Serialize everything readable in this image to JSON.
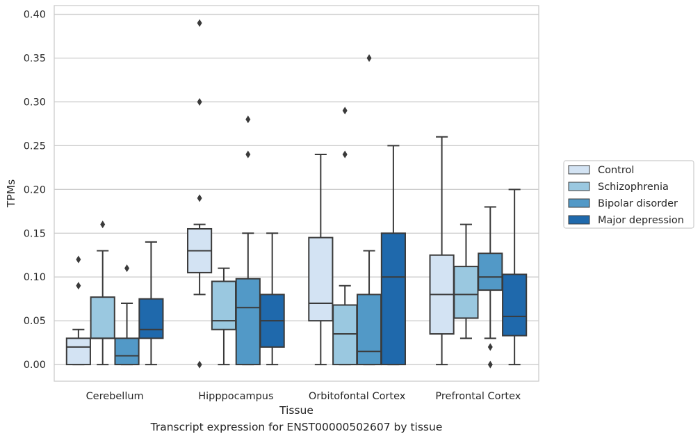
{
  "caption": "Transcript expression for ENST00000502607 by tissue",
  "chart_data": {
    "type": "box",
    "xlabel": "Tissue",
    "ylabel": "TPMs",
    "ylim": [
      -0.019,
      0.41
    ],
    "yticks": [
      0.0,
      0.05,
      0.1,
      0.15,
      0.2,
      0.25,
      0.3,
      0.35,
      0.4
    ],
    "ytick_labels": [
      "0.00",
      "0.05",
      "0.10",
      "0.15",
      "0.20",
      "0.25",
      "0.30",
      "0.35",
      "0.40"
    ],
    "grid": "horizontal",
    "legend_position": "right",
    "categories": [
      "Cerebellum",
      "Hipppocampus",
      "Orbitofontal Cortex",
      "Prefrontal Cortex"
    ],
    "series": [
      {
        "name": "Control",
        "color": "#d3e3f3",
        "boxes": [
          {
            "whisker_low": 0.0,
            "q1": 0.0,
            "median": 0.02,
            "q3": 0.03,
            "whisker_high": 0.04,
            "outliers": [
              0.09,
              0.12
            ]
          },
          {
            "whisker_low": 0.08,
            "q1": 0.105,
            "median": 0.13,
            "q3": 0.155,
            "whisker_high": 0.16,
            "outliers": [
              0.0,
              0.19,
              0.3,
              0.39
            ]
          },
          {
            "whisker_low": 0.0,
            "q1": 0.05,
            "median": 0.07,
            "q3": 0.145,
            "whisker_high": 0.24,
            "outliers": []
          },
          {
            "whisker_low": 0.0,
            "q1": 0.035,
            "median": 0.08,
            "q3": 0.125,
            "whisker_high": 0.26,
            "outliers": []
          }
        ]
      },
      {
        "name": "Schizophrenia",
        "color": "#9ac8e0",
        "boxes": [
          {
            "whisker_low": 0.0,
            "q1": 0.03,
            "median": 0.03,
            "q3": 0.077,
            "whisker_high": 0.13,
            "outliers": [
              0.16
            ]
          },
          {
            "whisker_low": 0.0,
            "q1": 0.04,
            "median": 0.05,
            "q3": 0.095,
            "whisker_high": 0.11,
            "outliers": []
          },
          {
            "whisker_low": 0.0,
            "q1": 0.0,
            "median": 0.035,
            "q3": 0.068,
            "whisker_high": 0.09,
            "outliers": [
              0.24,
              0.29
            ]
          },
          {
            "whisker_low": 0.03,
            "q1": 0.053,
            "median": 0.08,
            "q3": 0.112,
            "whisker_high": 0.16,
            "outliers": []
          }
        ]
      },
      {
        "name": "Bipolar disorder",
        "color": "#5299c7",
        "boxes": [
          {
            "whisker_low": 0.0,
            "q1": 0.0,
            "median": 0.01,
            "q3": 0.03,
            "whisker_high": 0.07,
            "outliers": [
              0.11
            ]
          },
          {
            "whisker_low": 0.0,
            "q1": 0.0,
            "median": 0.065,
            "q3": 0.098,
            "whisker_high": 0.15,
            "outliers": [
              0.24,
              0.28
            ]
          },
          {
            "whisker_low": 0.0,
            "q1": 0.0,
            "median": 0.015,
            "q3": 0.08,
            "whisker_high": 0.13,
            "outliers": [
              0.35
            ]
          },
          {
            "whisker_low": 0.03,
            "q1": 0.085,
            "median": 0.1,
            "q3": 0.127,
            "whisker_high": 0.18,
            "outliers": [
              0.0,
              0.02
            ]
          }
        ]
      },
      {
        "name": "Major depression",
        "color": "#1f69ac",
        "boxes": [
          {
            "whisker_low": 0.0,
            "q1": 0.03,
            "median": 0.04,
            "q3": 0.075,
            "whisker_high": 0.14,
            "outliers": []
          },
          {
            "whisker_low": 0.0,
            "q1": 0.02,
            "median": 0.05,
            "q3": 0.08,
            "whisker_high": 0.15,
            "outliers": []
          },
          {
            "whisker_low": 0.0,
            "q1": 0.0,
            "median": 0.1,
            "q3": 0.15,
            "whisker_high": 0.25,
            "outliers": []
          },
          {
            "whisker_low": 0.0,
            "q1": 0.033,
            "median": 0.055,
            "q3": 0.103,
            "whisker_high": 0.2,
            "outliers": []
          }
        ]
      }
    ]
  }
}
